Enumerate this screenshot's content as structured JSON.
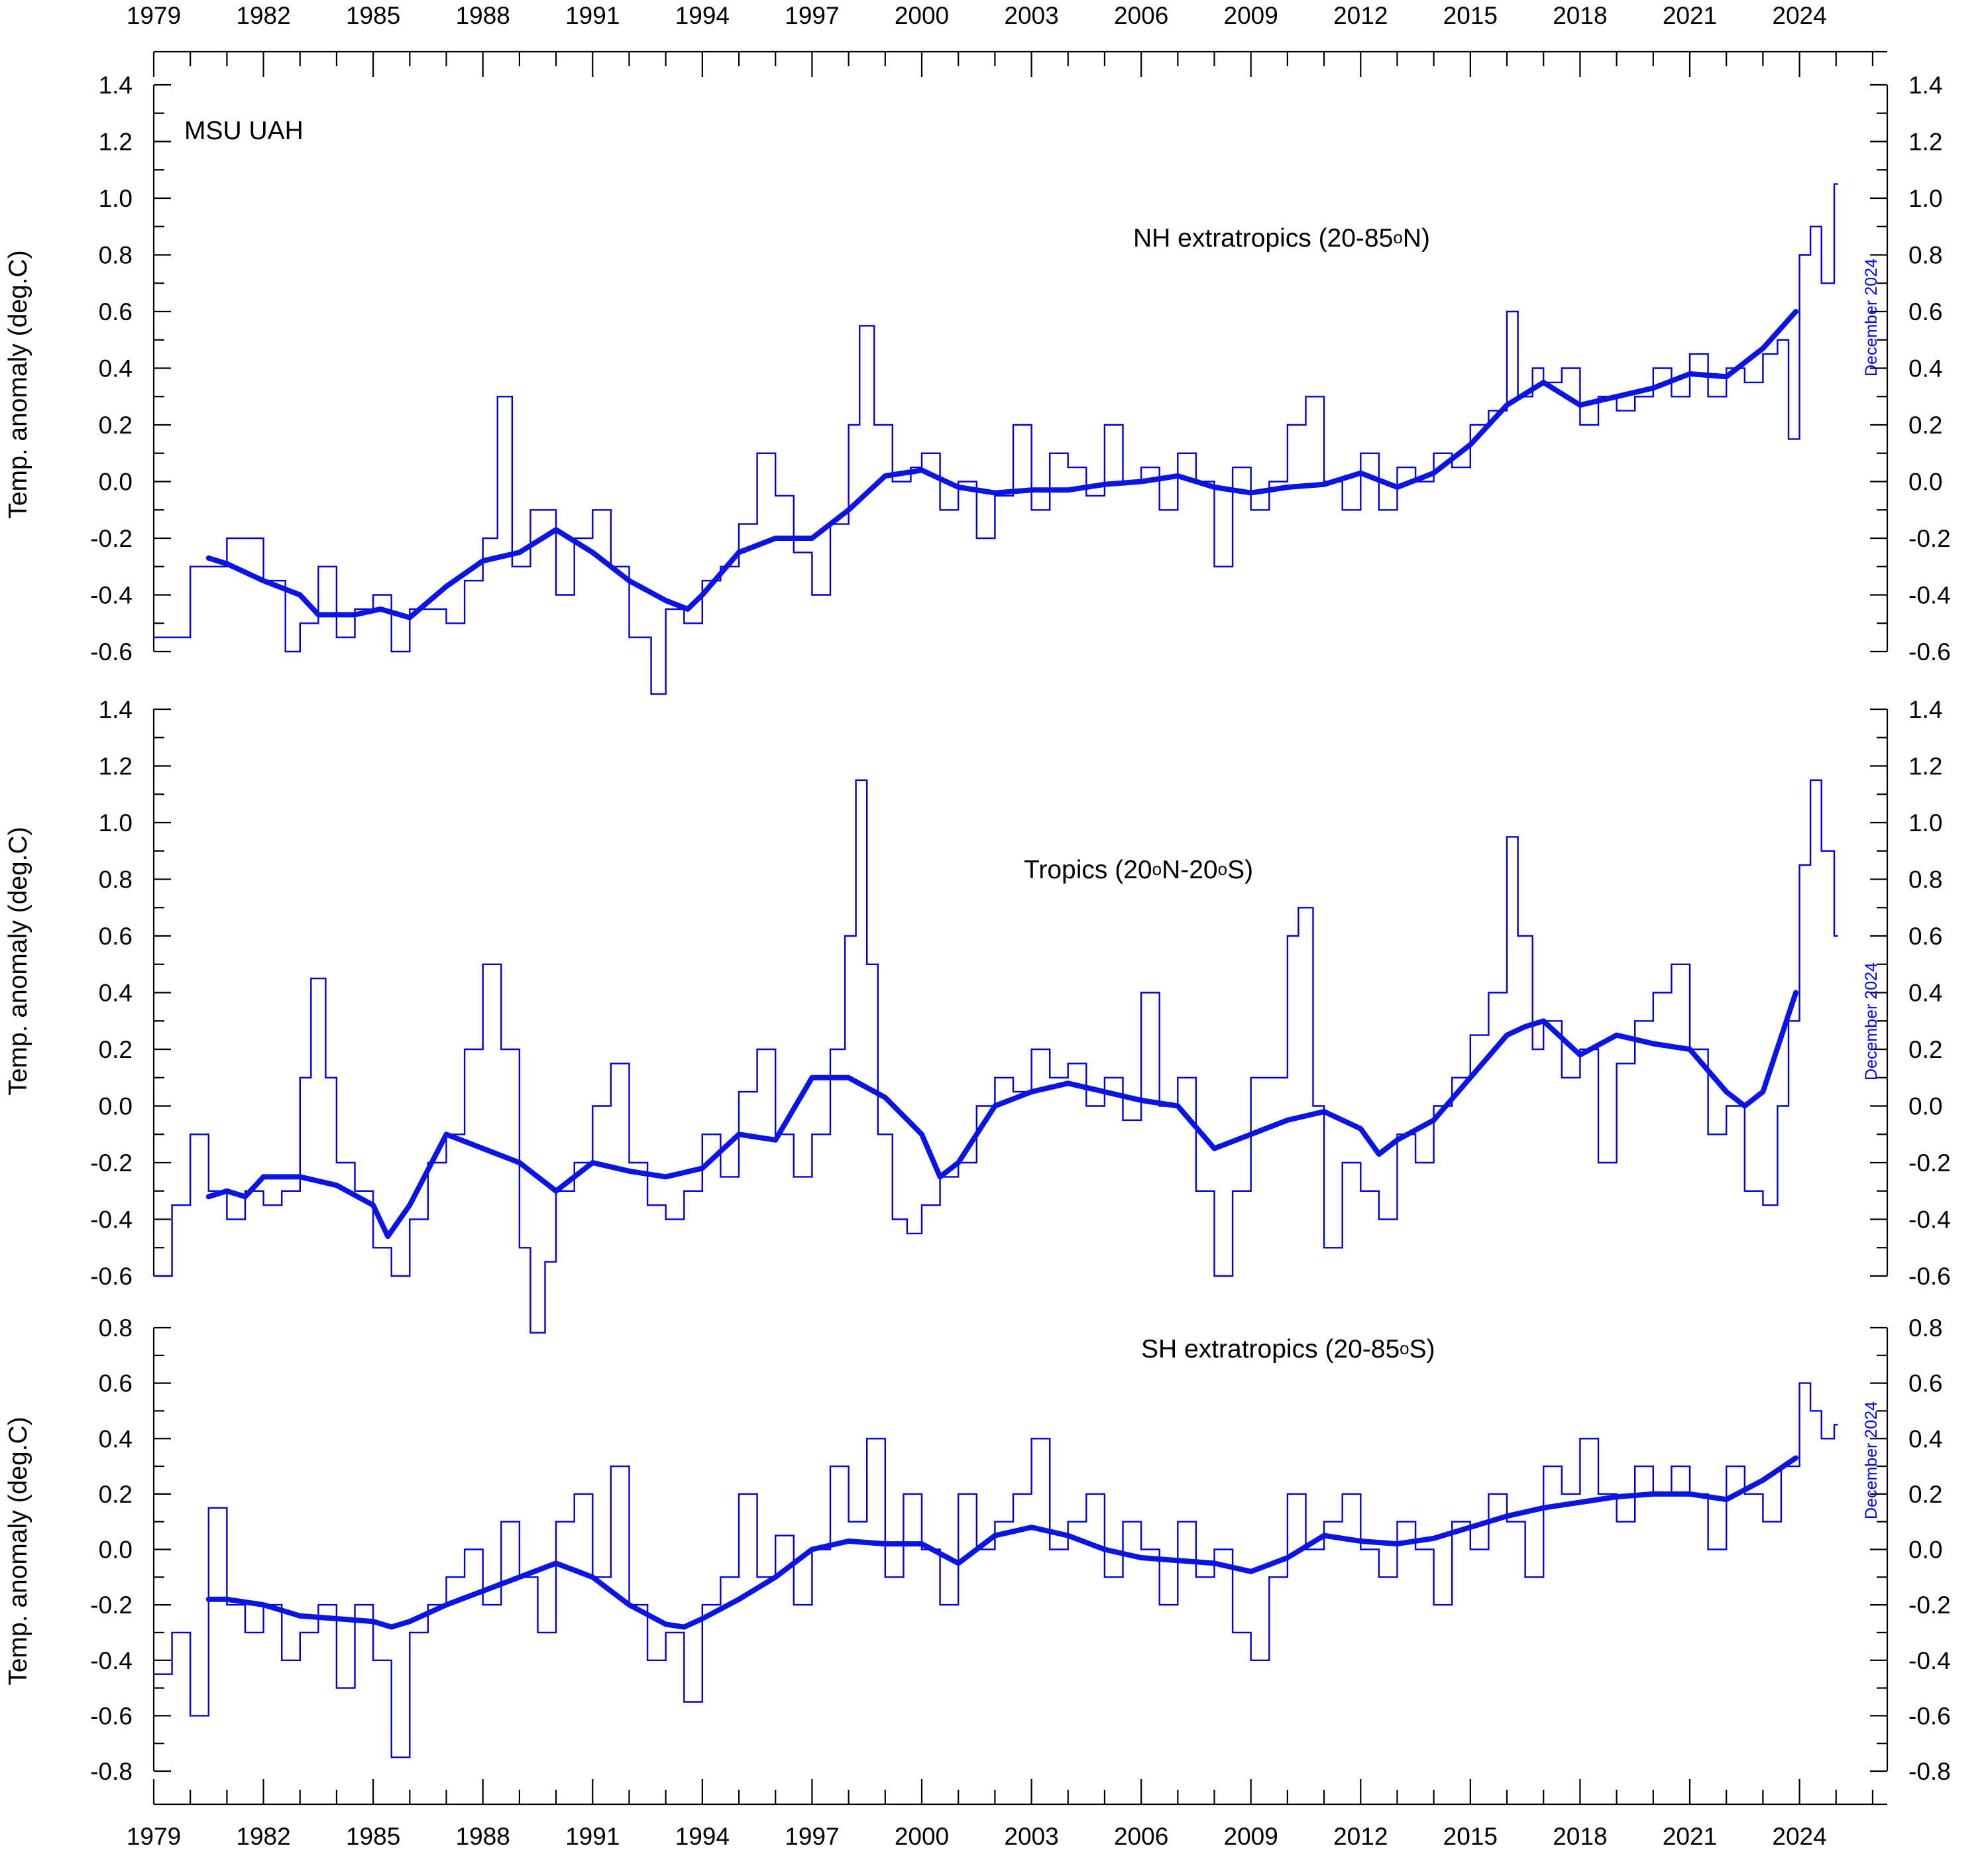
{
  "dataset_label": "MSU UAH",
  "date_note": "December 2024",
  "y_axis_label": "Temp. anomaly (deg.C)",
  "x_tick_labels": [
    "1979",
    "1982",
    "1985",
    "1988",
    "1991",
    "1994",
    "1997",
    "2000",
    "2003",
    "2006",
    "2009",
    "2012",
    "2015",
    "2018",
    "2021",
    "2024"
  ],
  "colors": {
    "series": "#0000dd",
    "smooth": "#0a14e6",
    "axis": "#000000"
  },
  "chart_data": [
    {
      "type": "line",
      "title": "NH extratropics (20-85oN)",
      "title_parts": [
        "NH extratropics (20-85",
        "o",
        "N)"
      ],
      "xlabel": "",
      "ylabel": "Temp. anomaly (deg.C)",
      "xlim": [
        1979.0,
        2026.4
      ],
      "ylim": [
        -0.6,
        1.4
      ],
      "y_ticks": [
        "1.4",
        "1.2",
        "1.0",
        "0.8",
        "0.6",
        "0.4",
        "0.2",
        "0.0",
        "-0.2",
        "-0.4",
        "-0.6"
      ],
      "y_tick_values": [
        1.4,
        1.2,
        1.0,
        0.8,
        0.6,
        0.4,
        0.2,
        0.0,
        -0.2,
        -0.4,
        -0.6
      ],
      "series": [
        {
          "style": "monthly step",
          "x": [
            1979.0,
            1980.0,
            1981.0,
            1982.0,
            1982.6,
            1983.0,
            1983.5,
            1984.0,
            1984.5,
            1985.0,
            1985.5,
            1986.0,
            1987.0,
            1987.5,
            1988.0,
            1988.4,
            1988.8,
            1989.3,
            1990.0,
            1990.5,
            1991.0,
            1991.5,
            1992.0,
            1992.6,
            1993.0,
            1993.5,
            1994.0,
            1994.5,
            1995.0,
            1995.5,
            1996.0,
            1996.5,
            1997.0,
            1997.5,
            1998.0,
            1998.3,
            1998.7,
            1999.2,
            1999.7,
            2000.0,
            2000.5,
            2001.0,
            2001.5,
            2002.0,
            2002.5,
            2003.0,
            2003.5,
            2004.0,
            2004.5,
            2005.0,
            2005.5,
            2006.0,
            2006.5,
            2007.0,
            2007.5,
            2008.0,
            2008.5,
            2009.0,
            2009.5,
            2010.0,
            2010.5,
            2011.0,
            2011.5,
            2012.0,
            2012.5,
            2013.0,
            2013.5,
            2014.0,
            2014.5,
            2015.0,
            2015.5,
            2016.0,
            2016.3,
            2016.7,
            2017.0,
            2017.5,
            2018.0,
            2018.5,
            2019.0,
            2019.5,
            2020.0,
            2020.5,
            2021.0,
            2021.5,
            2022.0,
            2022.5,
            2023.0,
            2023.4,
            2023.7,
            2024.0,
            2024.3,
            2024.6,
            2024.95
          ],
          "values": [
            -0.55,
            -0.3,
            -0.2,
            -0.35,
            -0.6,
            -0.5,
            -0.3,
            -0.55,
            -0.45,
            -0.4,
            -0.6,
            -0.45,
            -0.5,
            -0.35,
            -0.2,
            0.3,
            -0.3,
            -0.1,
            -0.4,
            -0.2,
            -0.1,
            -0.3,
            -0.55,
            -0.75,
            -0.45,
            -0.5,
            -0.35,
            -0.3,
            -0.15,
            0.1,
            -0.05,
            -0.25,
            -0.4,
            -0.15,
            0.2,
            0.55,
            0.2,
            0.0,
            0.05,
            0.1,
            -0.1,
            0.0,
            -0.2,
            -0.05,
            0.2,
            -0.1,
            0.1,
            0.05,
            -0.05,
            0.2,
            0.0,
            0.05,
            -0.1,
            0.1,
            0.0,
            -0.3,
            0.05,
            -0.1,
            0.0,
            0.2,
            0.3,
            0.0,
            -0.1,
            0.1,
            -0.1,
            0.05,
            0.0,
            0.1,
            0.05,
            0.2,
            0.25,
            0.6,
            0.3,
            0.4,
            0.35,
            0.4,
            0.2,
            0.3,
            0.25,
            0.3,
            0.4,
            0.3,
            0.45,
            0.3,
            0.4,
            0.35,
            0.45,
            0.5,
            0.15,
            0.8,
            0.9,
            0.7,
            1.05
          ]
        },
        {
          "style": "smoothed",
          "x": [
            1980.5,
            1981.0,
            1982.0,
            1983.0,
            1983.5,
            1984.5,
            1985.2,
            1986.0,
            1987.0,
            1988.0,
            1989.0,
            1990.0,
            1991.0,
            1992.0,
            1993.0,
            1993.6,
            1994.0,
            1995.0,
            1996.0,
            1997.0,
            1998.0,
            1999.0,
            2000.0,
            2001.0,
            2002.0,
            2003.0,
            2004.0,
            2005.0,
            2006.0,
            2007.0,
            2008.0,
            2009.0,
            2010.0,
            2011.0,
            2012.0,
            2013.0,
            2014.0,
            2015.0,
            2016.0,
            2017.0,
            2018.0,
            2019.0,
            2020.0,
            2021.0,
            2022.0,
            2023.0,
            2023.9
          ],
          "values": [
            -0.27,
            -0.29,
            -0.35,
            -0.4,
            -0.47,
            -0.47,
            -0.45,
            -0.48,
            -0.37,
            -0.28,
            -0.25,
            -0.17,
            -0.25,
            -0.35,
            -0.42,
            -0.45,
            -0.4,
            -0.25,
            -0.2,
            -0.2,
            -0.1,
            0.02,
            0.04,
            -0.02,
            -0.04,
            -0.03,
            -0.03,
            -0.01,
            0.0,
            0.02,
            -0.02,
            -0.04,
            -0.02,
            -0.01,
            0.03,
            -0.02,
            0.03,
            0.13,
            0.27,
            0.35,
            0.27,
            0.3,
            0.33,
            0.38,
            0.37,
            0.47,
            0.6
          ]
        }
      ]
    },
    {
      "type": "line",
      "title": "Tropics (20oN-20oS)",
      "title_parts": [
        "Tropics (20",
        "o",
        "N-20",
        "o",
        "S)"
      ],
      "xlabel": "",
      "ylabel": "Temp. anomaly (deg.C)",
      "xlim": [
        1979.0,
        2026.4
      ],
      "ylim": [
        -0.6,
        1.4
      ],
      "y_ticks": [
        "1.4",
        "1.2",
        "1.0",
        "0.8",
        "0.6",
        "0.4",
        "0.2",
        "0.0",
        "-0.2",
        "-0.4",
        "-0.6"
      ],
      "y_tick_values": [
        1.4,
        1.2,
        1.0,
        0.8,
        0.6,
        0.4,
        0.2,
        0.0,
        -0.2,
        -0.4,
        -0.6
      ],
      "series": [
        {
          "style": "monthly step",
          "x": [
            1979.0,
            1979.5,
            1980.0,
            1980.5,
            1981.0,
            1981.5,
            1982.0,
            1982.5,
            1983.0,
            1983.3,
            1983.7,
            1984.0,
            1984.5,
            1985.0,
            1985.5,
            1986.0,
            1986.5,
            1987.0,
            1987.5,
            1988.0,
            1988.5,
            1989.0,
            1989.3,
            1989.7,
            1990.0,
            1990.5,
            1991.0,
            1991.5,
            1992.0,
            1992.5,
            1993.0,
            1993.5,
            1994.0,
            1994.5,
            1995.0,
            1995.5,
            1996.0,
            1996.5,
            1997.0,
            1997.5,
            1997.9,
            1998.2,
            1998.5,
            1998.8,
            1999.2,
            1999.6,
            2000.0,
            2000.5,
            2001.0,
            2001.5,
            2002.0,
            2002.5,
            2003.0,
            2003.5,
            2004.0,
            2004.5,
            2005.0,
            2005.5,
            2006.0,
            2006.5,
            2007.0,
            2007.5,
            2008.0,
            2008.5,
            2009.0,
            2009.5,
            2010.0,
            2010.3,
            2010.7,
            2011.0,
            2011.5,
            2012.0,
            2012.5,
            2013.0,
            2013.5,
            2014.0,
            2014.5,
            2015.0,
            2015.5,
            2016.0,
            2016.3,
            2016.7,
            2017.0,
            2017.5,
            2018.0,
            2018.5,
            2019.0,
            2019.5,
            2020.0,
            2020.5,
            2021.0,
            2021.5,
            2022.0,
            2022.5,
            2023.0,
            2023.4,
            2023.7,
            2024.0,
            2024.3,
            2024.6,
            2024.95
          ],
          "values": [
            -0.6,
            -0.35,
            -0.1,
            -0.3,
            -0.4,
            -0.3,
            -0.35,
            -0.3,
            0.1,
            0.45,
            0.1,
            -0.2,
            -0.3,
            -0.5,
            -0.6,
            -0.4,
            -0.2,
            -0.1,
            0.2,
            0.5,
            0.2,
            -0.5,
            -0.8,
            -0.55,
            -0.3,
            -0.2,
            0.0,
            0.15,
            -0.2,
            -0.35,
            -0.4,
            -0.3,
            -0.1,
            -0.25,
            0.05,
            0.2,
            -0.1,
            -0.25,
            -0.1,
            0.2,
            0.6,
            1.15,
            0.5,
            -0.1,
            -0.4,
            -0.45,
            -0.35,
            -0.25,
            -0.2,
            0.0,
            0.1,
            0.05,
            0.2,
            0.1,
            0.15,
            0.0,
            0.1,
            -0.05,
            0.4,
            0.0,
            0.1,
            -0.3,
            -0.6,
            -0.3,
            0.1,
            0.1,
            0.6,
            0.7,
            0.0,
            -0.5,
            -0.2,
            -0.3,
            -0.4,
            -0.1,
            -0.2,
            0.0,
            0.1,
            0.25,
            0.4,
            0.95,
            0.6,
            0.2,
            0.3,
            0.1,
            0.2,
            -0.2,
            0.15,
            0.3,
            0.4,
            0.5,
            0.2,
            -0.1,
            0.0,
            -0.3,
            -0.35,
            0.0,
            0.3,
            0.85,
            1.15,
            0.9,
            0.6
          ]
        },
        {
          "style": "smoothed",
          "x": [
            1980.5,
            1981.0,
            1981.5,
            1982.0,
            1983.0,
            1984.0,
            1985.0,
            1985.4,
            1986.0,
            1987.0,
            1988.0,
            1989.0,
            1990.0,
            1991.0,
            1992.0,
            1993.0,
            1994.0,
            1995.0,
            1996.0,
            1997.0,
            1998.0,
            1999.0,
            2000.0,
            2000.5,
            2001.0,
            2002.0,
            2003.0,
            2004.0,
            2005.0,
            2006.0,
            2007.0,
            2008.0,
            2009.0,
            2010.0,
            2011.0,
            2012.0,
            2012.5,
            2013.0,
            2014.0,
            2015.0,
            2016.0,
            2016.5,
            2017.0,
            2018.0,
            2019.0,
            2020.0,
            2021.0,
            2022.0,
            2022.5,
            2023.0,
            2023.9
          ],
          "values": [
            -0.32,
            -0.3,
            -0.32,
            -0.25,
            -0.25,
            -0.28,
            -0.35,
            -0.46,
            -0.35,
            -0.1,
            -0.15,
            -0.2,
            -0.3,
            -0.2,
            -0.23,
            -0.25,
            -0.22,
            -0.1,
            -0.12,
            0.1,
            0.1,
            0.03,
            -0.1,
            -0.25,
            -0.2,
            0.0,
            0.05,
            0.08,
            0.05,
            0.02,
            0.0,
            -0.15,
            -0.1,
            -0.05,
            -0.02,
            -0.08,
            -0.17,
            -0.12,
            -0.05,
            0.1,
            0.25,
            0.28,
            0.3,
            0.18,
            0.25,
            0.22,
            0.2,
            0.05,
            0.0,
            0.05,
            0.4
          ]
        }
      ]
    },
    {
      "type": "line",
      "title": "SH extratropics (20-85oS)",
      "title_parts": [
        "SH extratropics (20-85",
        "o",
        "S)"
      ],
      "xlabel": "",
      "ylabel": "Temp. anomaly (deg.C)",
      "xlim": [
        1979.0,
        2026.4
      ],
      "ylim": [
        -0.8,
        0.8
      ],
      "y_ticks": [
        "0.8",
        "0.6",
        "0.4",
        "0.2",
        "0.0",
        "-0.2",
        "-0.4",
        "-0.6",
        "-0.8"
      ],
      "y_tick_values": [
        0.8,
        0.6,
        0.4,
        0.2,
        0.0,
        -0.2,
        -0.4,
        -0.6,
        -0.8
      ],
      "series": [
        {
          "style": "monthly step",
          "x": [
            1979.0,
            1979.5,
            1980.0,
            1980.5,
            1981.0,
            1981.5,
            1982.0,
            1982.5,
            1983.0,
            1983.5,
            1984.0,
            1984.5,
            1985.0,
            1985.5,
            1986.0,
            1986.5,
            1987.0,
            1987.5,
            1988.0,
            1988.5,
            1989.0,
            1989.5,
            1990.0,
            1990.5,
            1991.0,
            1991.5,
            1992.0,
            1992.5,
            1993.0,
            1993.5,
            1994.0,
            1994.5,
            1995.0,
            1995.5,
            1996.0,
            1996.5,
            1997.0,
            1997.5,
            1998.0,
            1998.5,
            1999.0,
            1999.5,
            2000.0,
            2000.5,
            2001.0,
            2001.5,
            2002.0,
            2002.5,
            2003.0,
            2003.5,
            2004.0,
            2004.5,
            2005.0,
            2005.5,
            2006.0,
            2006.5,
            2007.0,
            2007.5,
            2008.0,
            2008.5,
            2009.0,
            2009.5,
            2010.0,
            2010.5,
            2011.0,
            2011.5,
            2012.0,
            2012.5,
            2013.0,
            2013.5,
            2014.0,
            2014.5,
            2015.0,
            2015.5,
            2016.0,
            2016.5,
            2017.0,
            2017.5,
            2018.0,
            2018.5,
            2019.0,
            2019.5,
            2020.0,
            2020.5,
            2021.0,
            2021.5,
            2022.0,
            2022.5,
            2023.0,
            2023.5,
            2024.0,
            2024.3,
            2024.6,
            2024.95
          ],
          "values": [
            -0.45,
            -0.3,
            -0.6,
            0.15,
            -0.2,
            -0.3,
            -0.2,
            -0.4,
            -0.3,
            -0.2,
            -0.5,
            -0.2,
            -0.4,
            -0.75,
            -0.3,
            -0.2,
            -0.1,
            0.0,
            -0.2,
            0.1,
            -0.1,
            -0.3,
            0.1,
            0.2,
            -0.1,
            0.3,
            -0.2,
            -0.4,
            -0.3,
            -0.55,
            -0.2,
            -0.1,
            0.2,
            -0.1,
            0.05,
            -0.2,
            0.0,
            0.3,
            0.1,
            0.4,
            -0.1,
            0.2,
            0.0,
            -0.2,
            0.2,
            0.0,
            0.1,
            0.2,
            0.4,
            0.0,
            0.1,
            0.2,
            -0.1,
            0.1,
            0.0,
            -0.2,
            0.1,
            -0.1,
            0.0,
            -0.3,
            -0.4,
            -0.1,
            0.2,
            0.0,
            0.1,
            0.2,
            0.0,
            -0.1,
            0.1,
            0.0,
            -0.2,
            0.1,
            0.0,
            0.2,
            0.1,
            -0.1,
            0.3,
            0.2,
            0.4,
            0.2,
            0.1,
            0.3,
            0.2,
            0.3,
            0.2,
            0.0,
            0.3,
            0.2,
            0.1,
            0.3,
            0.6,
            0.5,
            0.4,
            0.45
          ]
        },
        {
          "style": "smoothed",
          "x": [
            1980.5,
            1981.0,
            1982.0,
            1983.0,
            1984.0,
            1985.0,
            1985.5,
            1986.0,
            1987.0,
            1988.0,
            1989.0,
            1990.0,
            1991.0,
            1992.0,
            1993.0,
            1993.5,
            1994.0,
            1995.0,
            1996.0,
            1997.0,
            1998.0,
            1999.0,
            2000.0,
            2001.0,
            2002.0,
            2003.0,
            2004.0,
            2005.0,
            2006.0,
            2007.0,
            2008.0,
            2009.0,
            2010.0,
            2011.0,
            2012.0,
            2013.0,
            2014.0,
            2015.0,
            2016.0,
            2017.0,
            2018.0,
            2019.0,
            2020.0,
            2021.0,
            2022.0,
            2023.0,
            2023.9
          ],
          "values": [
            -0.18,
            -0.18,
            -0.2,
            -0.24,
            -0.25,
            -0.26,
            -0.28,
            -0.26,
            -0.2,
            -0.15,
            -0.1,
            -0.05,
            -0.1,
            -0.2,
            -0.27,
            -0.28,
            -0.25,
            -0.18,
            -0.1,
            0.0,
            0.03,
            0.02,
            0.02,
            -0.05,
            0.05,
            0.08,
            0.05,
            0.0,
            -0.03,
            -0.04,
            -0.05,
            -0.08,
            -0.03,
            0.05,
            0.03,
            0.02,
            0.04,
            0.08,
            0.12,
            0.15,
            0.17,
            0.19,
            0.2,
            0.2,
            0.18,
            0.25,
            0.33
          ]
        }
      ]
    }
  ]
}
